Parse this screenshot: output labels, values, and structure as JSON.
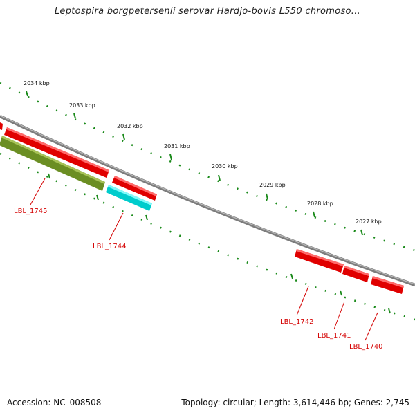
{
  "title": "Leptospira borgpetersenii serovar Hardjo-bovis L550 chromoso...",
  "footer": {
    "accession": "Accession: NC_008508",
    "summary": "Topology: circular; Length: 3,614,446 bp; Genes: 2,745"
  },
  "colors": {
    "backbone": "#8a8a8a",
    "tick": "#1a8a1a",
    "gene_red": "#e00000",
    "gene_olive": "#6b8e23",
    "gene_cyan": "#00d0d0",
    "label": "#d40000"
  },
  "ticks": [
    {
      "label": "2034 kbp"
    },
    {
      "label": "2033 kbp"
    },
    {
      "label": "2032 kbp"
    },
    {
      "label": "2031 kbp"
    },
    {
      "label": "2030 kbp"
    },
    {
      "label": "2029 kbp"
    },
    {
      "label": "2028 kbp"
    },
    {
      "label": "2027 kbp"
    }
  ],
  "genes": [
    {
      "name": "LBL_1745",
      "color": "olive"
    },
    {
      "name": "LBL_1744",
      "color": "cyan"
    },
    {
      "name": "LBL_1742",
      "color": "red"
    },
    {
      "name": "LBL_1741",
      "color": "red"
    },
    {
      "name": "LBL_1740",
      "color": "red"
    }
  ]
}
